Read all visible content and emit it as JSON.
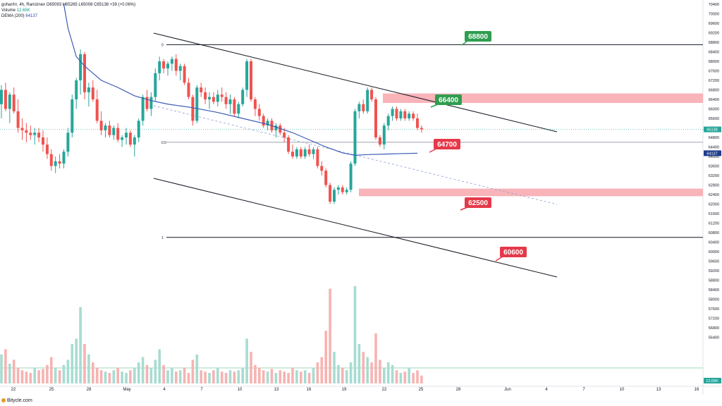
{
  "header": {
    "symbol_line": "gohar/irr, 4h, Ramzinex",
    "ohlc": "O65093 H65265 L65008 C65138 +39 (+0.06%)",
    "volume_label": "Volume",
    "volume_value": "12.65K",
    "dema_label": "DEMA (200)",
    "dema_value": "64137"
  },
  "footer": {
    "brand": "Bitycle.com"
  },
  "colors": {
    "up": "#26a69a",
    "down": "#ef5350",
    "up_vol": "#a7dcd2",
    "down_vol": "#f7b3b1",
    "dema": "#3b5bb5",
    "zone": "#f7a7ad",
    "green_label": "#2e9e4f",
    "red_label": "#e53949",
    "channel": "#131722",
    "fib": "#131722",
    "mid": "#b2b5be",
    "dashed": "#8a9bd0"
  },
  "chart_data": {
    "type": "candlestick",
    "timeframe": "4h",
    "x_ticks": [
      "22",
      "25",
      "28",
      "May",
      "4",
      "7",
      "10",
      "13",
      "16",
      "19",
      "22",
      "25",
      "28",
      "Jun",
      "4",
      "7",
      "10",
      "13",
      "16"
    ],
    "y_axis_ticks": [
      70400,
      70000,
      69600,
      69200,
      68800,
      68400,
      68000,
      67600,
      67200,
      66800,
      66400,
      66000,
      65600,
      65200,
      64800,
      64400,
      64000,
      63600,
      63200,
      62800,
      62400,
      62000,
      61600,
      61200,
      60800,
      60400,
      60000,
      59600,
      59200,
      58800,
      58400,
      58000,
      57600,
      57200,
      56800,
      56400
    ],
    "ylim": [
      56000,
      70400
    ],
    "last_price": 65138,
    "last_price_label": "65138",
    "dema_last": 64137,
    "dema_last_label": "64137",
    "volume_last_label": "12.65K",
    "levels": [
      {
        "value": 68800,
        "label": "68800",
        "kind": "green"
      },
      {
        "value": 66400,
        "label": "66400",
        "kind": "green"
      },
      {
        "value": 64700,
        "label": "64700",
        "kind": "red"
      },
      {
        "value": 62500,
        "label": "62500",
        "kind": "red"
      },
      {
        "value": 60600,
        "label": "60600",
        "kind": "red"
      }
    ],
    "fib_labels": [
      {
        "label": "0",
        "value": 68700
      },
      {
        "label": "0.5",
        "value": 64600
      },
      {
        "label": "1",
        "value": 60600
      }
    ],
    "zones": [
      {
        "low": 66250,
        "high": 66650
      },
      {
        "low": 62330,
        "high": 62650
      }
    ],
    "candles": [
      {
        "o": 66200,
        "h": 67000,
        "l": 65600,
        "c": 66800
      },
      {
        "o": 66800,
        "h": 67100,
        "l": 65900,
        "c": 66000
      },
      {
        "o": 66000,
        "h": 66700,
        "l": 65400,
        "c": 66600
      },
      {
        "o": 66600,
        "h": 66900,
        "l": 65800,
        "c": 65900
      },
      {
        "o": 65900,
        "h": 66400,
        "l": 65000,
        "c": 65200
      },
      {
        "o": 65200,
        "h": 65600,
        "l": 64700,
        "c": 65100
      },
      {
        "o": 65100,
        "h": 65400,
        "l": 64600,
        "c": 65000
      },
      {
        "o": 65000,
        "h": 65300,
        "l": 64700,
        "c": 64900
      },
      {
        "o": 64900,
        "h": 65200,
        "l": 64500,
        "c": 65000
      },
      {
        "o": 65000,
        "h": 65200,
        "l": 64600,
        "c": 64800
      },
      {
        "o": 64800,
        "h": 65100,
        "l": 64200,
        "c": 64500
      },
      {
        "o": 64500,
        "h": 64800,
        "l": 63900,
        "c": 64100
      },
      {
        "o": 64100,
        "h": 64300,
        "l": 63400,
        "c": 63600
      },
      {
        "o": 63600,
        "h": 64000,
        "l": 63300,
        "c": 63800
      },
      {
        "o": 63800,
        "h": 64100,
        "l": 63500,
        "c": 63700
      },
      {
        "o": 63700,
        "h": 64300,
        "l": 63500,
        "c": 64200
      },
      {
        "o": 64200,
        "h": 65200,
        "l": 64000,
        "c": 65000
      },
      {
        "o": 65000,
        "h": 66600,
        "l": 64800,
        "c": 66400
      },
      {
        "o": 66400,
        "h": 67300,
        "l": 66000,
        "c": 67200
      },
      {
        "o": 67200,
        "h": 68500,
        "l": 66600,
        "c": 68300
      },
      {
        "o": 68300,
        "h": 68400,
        "l": 66400,
        "c": 66700
      },
      {
        "o": 66700,
        "h": 67100,
        "l": 66100,
        "c": 66900
      },
      {
        "o": 66900,
        "h": 67200,
        "l": 66300,
        "c": 66400
      },
      {
        "o": 66400,
        "h": 66800,
        "l": 65400,
        "c": 65500
      },
      {
        "o": 65500,
        "h": 65900,
        "l": 64900,
        "c": 65100
      },
      {
        "o": 65100,
        "h": 65400,
        "l": 64800,
        "c": 65300
      },
      {
        "o": 65300,
        "h": 65500,
        "l": 64800,
        "c": 64900
      },
      {
        "o": 64900,
        "h": 65300,
        "l": 64700,
        "c": 65200
      },
      {
        "o": 65200,
        "h": 65400,
        "l": 64600,
        "c": 64700
      },
      {
        "o": 64700,
        "h": 64900,
        "l": 64400,
        "c": 64800
      },
      {
        "o": 64800,
        "h": 65200,
        "l": 64500,
        "c": 65000
      },
      {
        "o": 65000,
        "h": 65100,
        "l": 64400,
        "c": 64500
      },
      {
        "o": 64500,
        "h": 64900,
        "l": 64000,
        "c": 64800
      },
      {
        "o": 64800,
        "h": 65600,
        "l": 64600,
        "c": 65500
      },
      {
        "o": 65500,
        "h": 66600,
        "l": 65300,
        "c": 66500
      },
      {
        "o": 66500,
        "h": 66800,
        "l": 65900,
        "c": 66000
      },
      {
        "o": 66000,
        "h": 66700,
        "l": 65700,
        "c": 66500
      },
      {
        "o": 66500,
        "h": 67700,
        "l": 66300,
        "c": 67500
      },
      {
        "o": 67500,
        "h": 68200,
        "l": 67200,
        "c": 68000
      },
      {
        "o": 68000,
        "h": 68100,
        "l": 67500,
        "c": 67700
      },
      {
        "o": 67700,
        "h": 68000,
        "l": 67400,
        "c": 67900
      },
      {
        "o": 67900,
        "h": 68200,
        "l": 67600,
        "c": 68100
      },
      {
        "o": 68100,
        "h": 68300,
        "l": 67400,
        "c": 67600
      },
      {
        "o": 67600,
        "h": 67900,
        "l": 67200,
        "c": 67800
      },
      {
        "o": 67800,
        "h": 67900,
        "l": 67000,
        "c": 67100
      },
      {
        "o": 67100,
        "h": 67300,
        "l": 66400,
        "c": 66500
      },
      {
        "o": 66500,
        "h": 66600,
        "l": 65300,
        "c": 65500
      },
      {
        "o": 65500,
        "h": 67000,
        "l": 65400,
        "c": 66900
      },
      {
        "o": 66900,
        "h": 67100,
        "l": 66500,
        "c": 66700
      },
      {
        "o": 66700,
        "h": 66900,
        "l": 66200,
        "c": 66400
      },
      {
        "o": 66400,
        "h": 66700,
        "l": 66000,
        "c": 66500
      },
      {
        "o": 66500,
        "h": 66700,
        "l": 66200,
        "c": 66300
      },
      {
        "o": 66300,
        "h": 66800,
        "l": 66100,
        "c": 66600
      },
      {
        "o": 66600,
        "h": 66900,
        "l": 66300,
        "c": 66500
      },
      {
        "o": 66500,
        "h": 66700,
        "l": 66000,
        "c": 66200
      },
      {
        "o": 66200,
        "h": 66600,
        "l": 65800,
        "c": 66400
      },
      {
        "o": 66400,
        "h": 66500,
        "l": 65700,
        "c": 65800
      },
      {
        "o": 65800,
        "h": 66300,
        "l": 65600,
        "c": 66200
      },
      {
        "o": 66200,
        "h": 66900,
        "l": 66100,
        "c": 66800
      },
      {
        "o": 66800,
        "h": 68100,
        "l": 66500,
        "c": 68000
      },
      {
        "o": 68000,
        "h": 68100,
        "l": 66300,
        "c": 66400
      },
      {
        "o": 66400,
        "h": 66500,
        "l": 65700,
        "c": 66000
      },
      {
        "o": 66000,
        "h": 66200,
        "l": 65500,
        "c": 65700
      },
      {
        "o": 65700,
        "h": 65800,
        "l": 65200,
        "c": 65300
      },
      {
        "o": 65300,
        "h": 65600,
        "l": 65100,
        "c": 65500
      },
      {
        "o": 65500,
        "h": 65600,
        "l": 65000,
        "c": 65100
      },
      {
        "o": 65100,
        "h": 65400,
        "l": 64800,
        "c": 65300
      },
      {
        "o": 65300,
        "h": 65400,
        "l": 64900,
        "c": 65000
      },
      {
        "o": 65000,
        "h": 65200,
        "l": 64600,
        "c": 64800
      },
      {
        "o": 64800,
        "h": 64900,
        "l": 64100,
        "c": 64200
      },
      {
        "o": 64200,
        "h": 64500,
        "l": 63900,
        "c": 64000
      },
      {
        "o": 64000,
        "h": 64400,
        "l": 63900,
        "c": 64300
      },
      {
        "o": 64300,
        "h": 64400,
        "l": 63900,
        "c": 64000
      },
      {
        "o": 64000,
        "h": 64400,
        "l": 63900,
        "c": 64300
      },
      {
        "o": 64300,
        "h": 64500,
        "l": 64000,
        "c": 64100
      },
      {
        "o": 64100,
        "h": 64400,
        "l": 63900,
        "c": 64300
      },
      {
        "o": 64300,
        "h": 64400,
        "l": 63500,
        "c": 63600
      },
      {
        "o": 63600,
        "h": 63800,
        "l": 63200,
        "c": 63400
      },
      {
        "o": 63400,
        "h": 63500,
        "l": 62700,
        "c": 62800
      },
      {
        "o": 62800,
        "h": 62900,
        "l": 62000,
        "c": 62100
      },
      {
        "o": 62100,
        "h": 62700,
        "l": 62000,
        "c": 62600
      },
      {
        "o": 62600,
        "h": 62800,
        "l": 62400,
        "c": 62700
      },
      {
        "o": 62700,
        "h": 62800,
        "l": 62400,
        "c": 62500
      },
      {
        "o": 62500,
        "h": 62700,
        "l": 62400,
        "c": 62600
      },
      {
        "o": 62600,
        "h": 63800,
        "l": 62500,
        "c": 63700
      },
      {
        "o": 63700,
        "h": 66000,
        "l": 63600,
        "c": 65900
      },
      {
        "o": 65900,
        "h": 66300,
        "l": 65600,
        "c": 66200
      },
      {
        "o": 66200,
        "h": 66400,
        "l": 65800,
        "c": 65900
      },
      {
        "o": 65900,
        "h": 66900,
        "l": 65800,
        "c": 66800
      },
      {
        "o": 66800,
        "h": 66900,
        "l": 66300,
        "c": 66400
      },
      {
        "o": 66400,
        "h": 66500,
        "l": 64700,
        "c": 64800
      },
      {
        "o": 64800,
        "h": 64900,
        "l": 64400,
        "c": 64500
      },
      {
        "o": 64500,
        "h": 65400,
        "l": 64300,
        "c": 65300
      },
      {
        "o": 65300,
        "h": 65800,
        "l": 65100,
        "c": 65700
      },
      {
        "o": 65700,
        "h": 66100,
        "l": 65500,
        "c": 66000
      },
      {
        "o": 66000,
        "h": 66100,
        "l": 65500,
        "c": 65600
      },
      {
        "o": 65600,
        "h": 66000,
        "l": 65500,
        "c": 65900
      },
      {
        "o": 65900,
        "h": 66000,
        "l": 65500,
        "c": 65600
      },
      {
        "o": 65600,
        "h": 65900,
        "l": 65500,
        "c": 65800
      },
      {
        "o": 65800,
        "h": 65900,
        "l": 65500,
        "c": 65600
      },
      {
        "o": 65600,
        "h": 65800,
        "l": 65100,
        "c": 65200
      },
      {
        "o": 65200,
        "h": 65300,
        "l": 65000,
        "c": 65140
      }
    ],
    "dema": [
      {
        "i": 15,
        "v": 70400
      },
      {
        "i": 16,
        "v": 69400
      },
      {
        "i": 18,
        "v": 68200
      },
      {
        "i": 20,
        "v": 67800
      },
      {
        "i": 24,
        "v": 67200
      },
      {
        "i": 28,
        "v": 66900
      },
      {
        "i": 32,
        "v": 66550
      },
      {
        "i": 36,
        "v": 66350
      },
      {
        "i": 40,
        "v": 66200
      },
      {
        "i": 46,
        "v": 66050
      },
      {
        "i": 52,
        "v": 65850
      },
      {
        "i": 58,
        "v": 65600
      },
      {
        "i": 64,
        "v": 65350
      },
      {
        "i": 70,
        "v": 65000
      },
      {
        "i": 74,
        "v": 64700
      },
      {
        "i": 78,
        "v": 64400
      },
      {
        "i": 82,
        "v": 64150
      },
      {
        "i": 85,
        "v": 64050
      },
      {
        "i": 88,
        "v": 64080
      },
      {
        "i": 92,
        "v": 64100
      },
      {
        "i": 96,
        "v": 64120
      },
      {
        "i": 100,
        "v": 64137
      }
    ],
    "volume": [
      22,
      26,
      15,
      18,
      12,
      10,
      9,
      8,
      12,
      10,
      11,
      14,
      20,
      12,
      10,
      14,
      18,
      30,
      34,
      58,
      30,
      22,
      16,
      12,
      10,
      9,
      8,
      10,
      12,
      9,
      8,
      10,
      12,
      16,
      20,
      14,
      12,
      18,
      26,
      14,
      10,
      12,
      9,
      10,
      12,
      8,
      18,
      22,
      10,
      9,
      8,
      10,
      12,
      9,
      8,
      10,
      9,
      10,
      12,
      34,
      24,
      14,
      12,
      10,
      9,
      11,
      8,
      10,
      9,
      8,
      12,
      10,
      9,
      10,
      8,
      12,
      16,
      20,
      40,
      72,
      24,
      14,
      12,
      10,
      16,
      74,
      30,
      24,
      20,
      16,
      38,
      18,
      12,
      16,
      14,
      10,
      8,
      9,
      12,
      8,
      10,
      6
    ],
    "volume_ylim": [
      0,
      75
    ]
  }
}
